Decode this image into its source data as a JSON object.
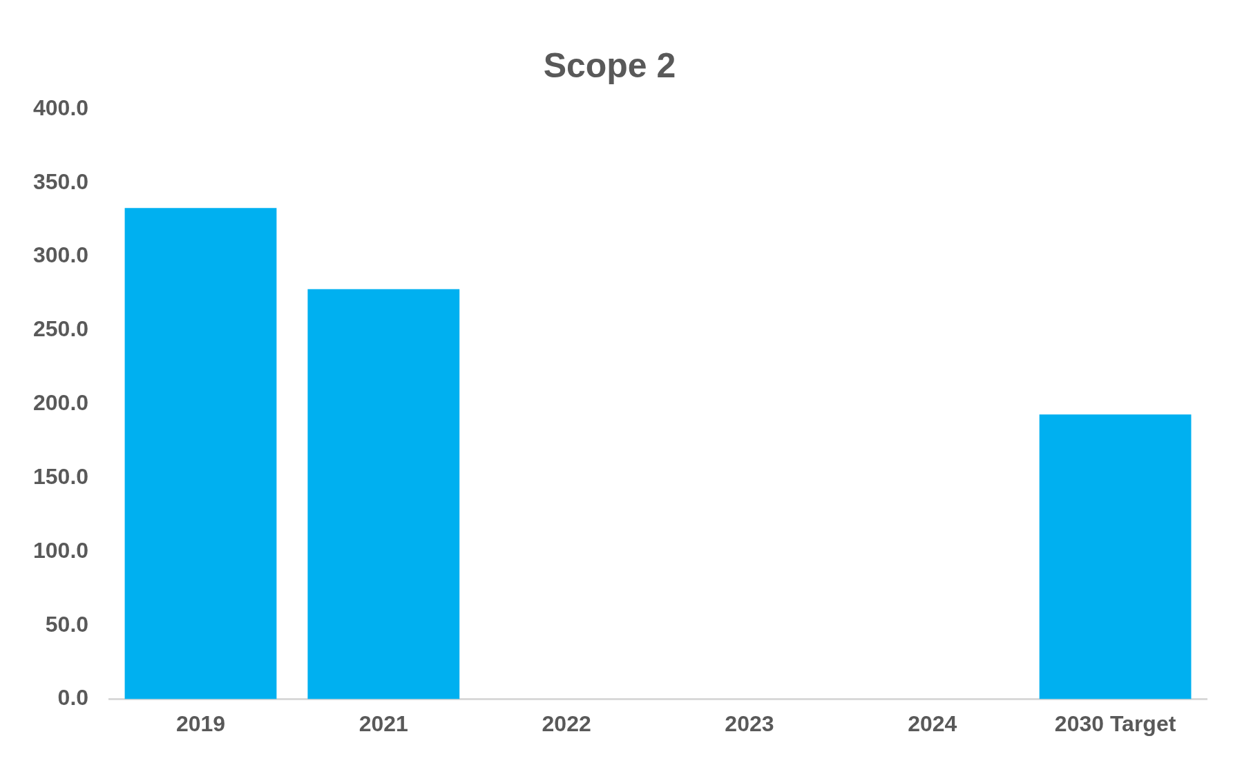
{
  "chart_data": {
    "type": "bar",
    "title": "Scope 2",
    "categories": [
      "2019",
      "2021",
      "2022",
      "2023",
      "2024",
      "2030 Target"
    ],
    "values": [
      333,
      278,
      null,
      null,
      null,
      193
    ],
    "color": "#00b0f0",
    "ylim": [
      0,
      400
    ],
    "yticks": [
      {
        "value": 0,
        "label": "0.0"
      },
      {
        "value": 50,
        "label": "50.0"
      },
      {
        "value": 100,
        "label": "100.0"
      },
      {
        "value": 150,
        "label": "150.0"
      },
      {
        "value": 200,
        "label": "200.0"
      },
      {
        "value": 250,
        "label": "250.0"
      },
      {
        "value": 300,
        "label": "300.0"
      },
      {
        "value": 350,
        "label": "350.0"
      },
      {
        "value": 400,
        "label": "400.0"
      }
    ],
    "grid": false,
    "legend": false
  }
}
